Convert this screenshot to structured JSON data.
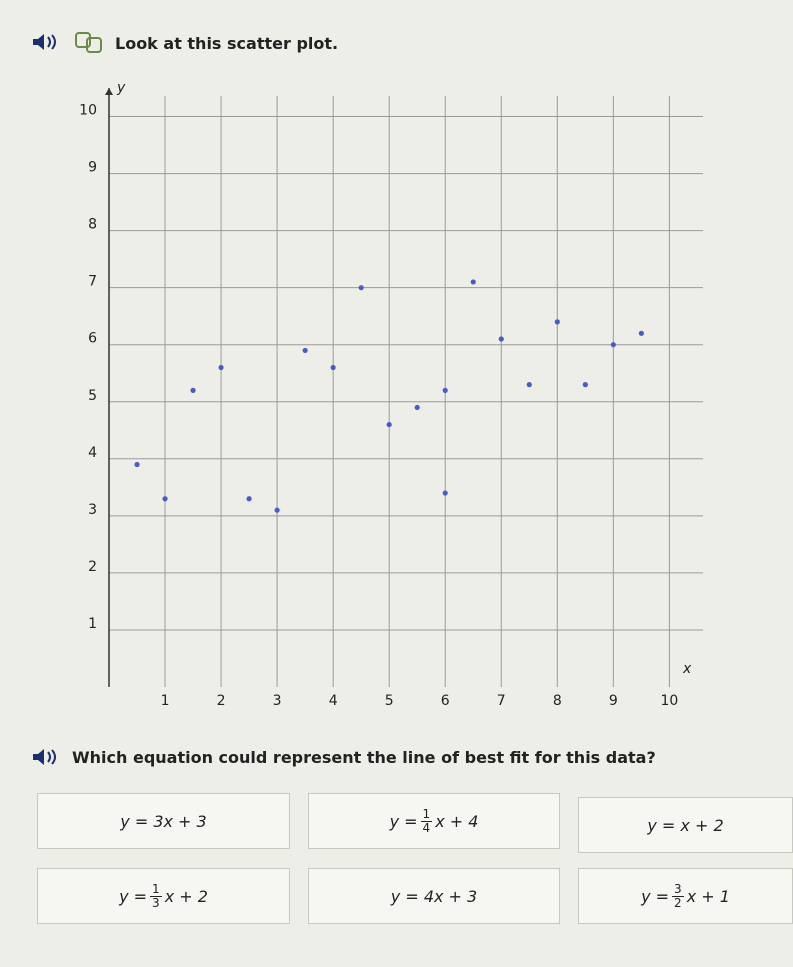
{
  "prompt": "Look at this scatter plot.",
  "chart_data": {
    "type": "scatter",
    "x_label": "x",
    "y_label": "y",
    "x": [
      0.5,
      1,
      1.5,
      2,
      2.5,
      3,
      3.5,
      4,
      4.5,
      5,
      5.5,
      6,
      6,
      6.5,
      7,
      7.5,
      8,
      8.5,
      9,
      9.5
    ],
    "values": [
      3.9,
      3.3,
      5.2,
      5.6,
      3.3,
      3.1,
      5.9,
      5.6,
      7.0,
      4.6,
      4.9,
      3.4,
      5.2,
      7.1,
      6.1,
      5.3,
      6.4,
      5.3,
      6.0,
      6.2
    ],
    "color": "#4a5bc4",
    "xlim": [
      0,
      10.6
    ],
    "ylim": [
      0,
      10.5
    ],
    "xticks": [
      1,
      2,
      3,
      4,
      5,
      6,
      7,
      8,
      9,
      10
    ],
    "yticks": [
      1,
      2,
      3,
      4,
      5,
      6,
      7,
      8,
      9,
      10
    ],
    "grid": true
  },
  "question": "Which equation could represent the line of best fit for this data?",
  "choices": [
    {
      "text": "y = 3x + 3"
    },
    {
      "prefix": "y =",
      "num": "1",
      "den": "4",
      "suffix": "x + 4"
    },
    {
      "text": "y = x + 2"
    },
    {
      "prefix": "y =",
      "num": "1",
      "den": "3",
      "suffix": "x + 2"
    },
    {
      "text": "y = 4x + 3"
    },
    {
      "prefix": "y =",
      "num": "3",
      "den": "2",
      "suffix": "x + 1"
    }
  ]
}
